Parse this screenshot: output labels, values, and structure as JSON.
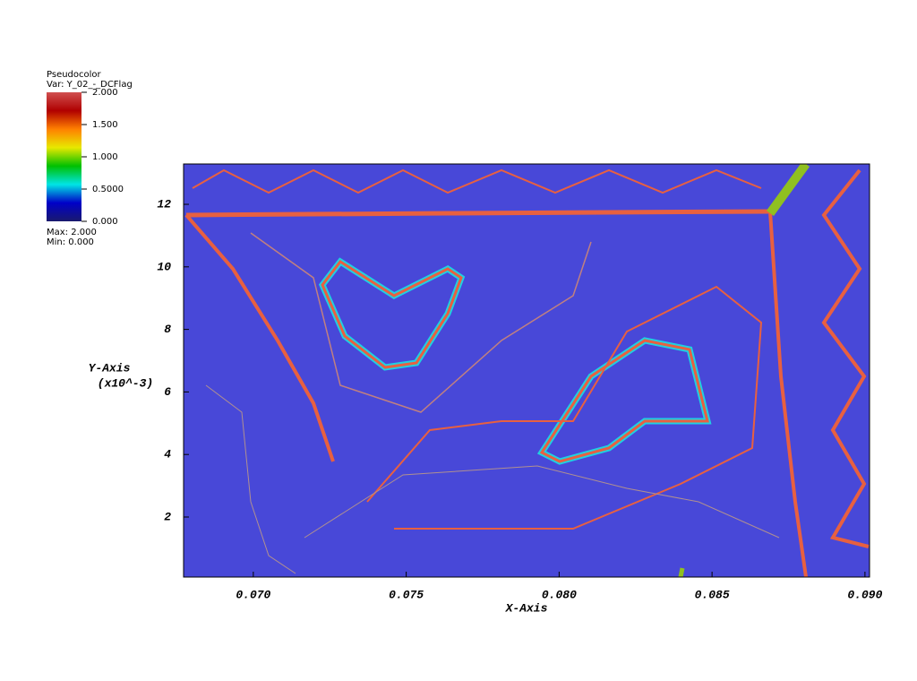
{
  "chart_data": {
    "type": "pseudocolor",
    "legend_title": "Pseudocolor",
    "variable": "Var: Y_02_-_DCFlag",
    "max_label": "Max: 2.000",
    "min_label": "Min: 0.000",
    "colormap": [
      "#1a1a6e",
      "#0000c8",
      "#00e5e5",
      "#00c000",
      "#e8e800",
      "#ff8000",
      "#b00000",
      "#d05050"
    ],
    "colorbar_lim": [
      0,
      2
    ],
    "colorbar_ticks": [
      {
        "value": 2,
        "label": "2.000"
      },
      {
        "value": 1.5,
        "label": "1.500"
      },
      {
        "value": 1,
        "label": "1.000"
      },
      {
        "value": 0.5,
        "label": "0.5000"
      },
      {
        "value": 0,
        "label": "0.000"
      }
    ],
    "xlabel": "X-Axis",
    "ylabel": "Y-Axis",
    "ylabel_units": "(x10^-3)",
    "xlim": [
      0.06772,
      0.09015
    ],
    "ylim": [
      0.08,
      13.29
    ],
    "xticks": [
      {
        "value": 0.07,
        "label": "0.070"
      },
      {
        "value": 0.075,
        "label": "0.075"
      },
      {
        "value": 0.08,
        "label": "0.080"
      },
      {
        "value": 0.085,
        "label": "0.085"
      },
      {
        "value": 0.09,
        "label": "0.090"
      }
    ],
    "yticks": [
      2,
      4,
      6,
      8,
      10,
      12
    ],
    "background_color": "#4848d8"
  }
}
